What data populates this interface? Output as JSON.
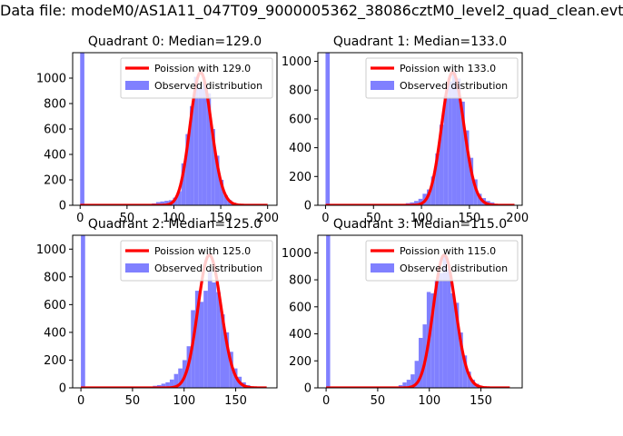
{
  "figure": {
    "title": "Data file: modeM0/AS1A11_047T09_9000005362_38086cztM0_level2_quad_clean.evt",
    "colors": {
      "bar": "#8080ff",
      "bar_edge": "#6666ee",
      "line": "#ff0000"
    }
  },
  "chart_data": [
    {
      "type": "bar",
      "title": "Quadrant 0: Median=129.0",
      "median": 129.0,
      "xlim": [
        -8,
        210
      ],
      "ylim": [
        0,
        1200
      ],
      "xticks": [
        0,
        50,
        100,
        150,
        200
      ],
      "yticks": [
        0,
        200,
        400,
        600,
        800,
        1000
      ],
      "xtick_labels": [
        "0",
        "50",
        "100",
        "150",
        "200"
      ],
      "ytick_labels": [
        "0",
        "200",
        "400",
        "600",
        "800",
        "1000"
      ],
      "bin_width": 4.5,
      "bins": [
        [
          0,
          1200
        ],
        [
          4.5,
          3
        ],
        [
          9,
          3
        ],
        [
          13.5,
          3
        ],
        [
          18,
          3
        ],
        [
          22.5,
          3
        ],
        [
          27,
          3
        ],
        [
          31.5,
          3
        ],
        [
          36,
          3
        ],
        [
          40.5,
          3
        ],
        [
          45,
          3
        ],
        [
          49.5,
          3
        ],
        [
          54,
          3
        ],
        [
          58.5,
          3
        ],
        [
          63,
          3
        ],
        [
          67.5,
          5
        ],
        [
          72,
          8
        ],
        [
          76.5,
          15
        ],
        [
          81,
          25
        ],
        [
          85.5,
          30
        ],
        [
          90,
          35
        ],
        [
          94.5,
          40
        ],
        [
          99,
          60
        ],
        [
          103.5,
          110
        ],
        [
          108,
          330
        ],
        [
          112.5,
          560
        ],
        [
          117,
          780
        ],
        [
          121.5,
          1010
        ],
        [
          126,
          920
        ],
        [
          130.5,
          960
        ],
        [
          135,
          880
        ],
        [
          139.5,
          600
        ],
        [
          144,
          390
        ],
        [
          148.5,
          200
        ],
        [
          153,
          80
        ],
        [
          157.5,
          40
        ],
        [
          162,
          20
        ],
        [
          166.5,
          10
        ],
        [
          171,
          5
        ],
        [
          175.5,
          3
        ],
        [
          180,
          3
        ],
        [
          184.5,
          3
        ],
        [
          189,
          3
        ],
        [
          193.5,
          3
        ],
        [
          198,
          3
        ]
      ],
      "poisson_range": [
        0,
        200
      ],
      "legend": {
        "line": "Poission with 129.0",
        "bar": "Observed distribution"
      }
    },
    {
      "type": "bar",
      "title": "Quadrant 1: Median=133.0",
      "median": 133.0,
      "xlim": [
        -8,
        205
      ],
      "ylim": [
        0,
        1060
      ],
      "xticks": [
        0,
        50,
        100,
        150,
        200
      ],
      "yticks": [
        0,
        200,
        400,
        600,
        800,
        1000
      ],
      "xtick_labels": [
        "0",
        "50",
        "100",
        "150",
        "200"
      ],
      "ytick_labels": [
        "0",
        "200",
        "400",
        "600",
        "800",
        "1000"
      ],
      "bin_width": 4.4,
      "bins": [
        [
          0,
          1060
        ],
        [
          4.4,
          3
        ],
        [
          8.8,
          3
        ],
        [
          13.2,
          3
        ],
        [
          17.6,
          3
        ],
        [
          22,
          3
        ],
        [
          26.4,
          3
        ],
        [
          30.8,
          3
        ],
        [
          35.2,
          3
        ],
        [
          39.6,
          3
        ],
        [
          44,
          3
        ],
        [
          48.4,
          3
        ],
        [
          52.8,
          3
        ],
        [
          57.2,
          3
        ],
        [
          61.6,
          3
        ],
        [
          66,
          3
        ],
        [
          70.4,
          5
        ],
        [
          74.8,
          6
        ],
        [
          79.2,
          8
        ],
        [
          83.6,
          15
        ],
        [
          88,
          20
        ],
        [
          92.4,
          30
        ],
        [
          96.8,
          45
        ],
        [
          101.2,
          80
        ],
        [
          105.6,
          110
        ],
        [
          110,
          200
        ],
        [
          114.4,
          360
        ],
        [
          118.8,
          560
        ],
        [
          123.2,
          760
        ],
        [
          127.6,
          860
        ],
        [
          132,
          930
        ],
        [
          136.4,
          880
        ],
        [
          140.8,
          720
        ],
        [
          145.2,
          520
        ],
        [
          149.6,
          330
        ],
        [
          154,
          180
        ],
        [
          158.4,
          80
        ],
        [
          162.8,
          50
        ],
        [
          167.2,
          30
        ],
        [
          171.6,
          20
        ],
        [
          176,
          8
        ],
        [
          180.4,
          5
        ],
        [
          184.8,
          3
        ],
        [
          189.2,
          3
        ],
        [
          193.6,
          3
        ]
      ],
      "poisson_range": [
        0,
        197
      ],
      "legend": {
        "line": "Poission with 133.0",
        "bar": "Observed distribution"
      }
    },
    {
      "type": "bar",
      "title": "Quadrant 2: Median=125.0",
      "median": 125.0,
      "xlim": [
        -8,
        190
      ],
      "ylim": [
        0,
        1100
      ],
      "xticks": [
        0,
        50,
        100,
        150
      ],
      "yticks": [
        0,
        200,
        400,
        600,
        800,
        1000
      ],
      "xtick_labels": [
        "0",
        "50",
        "100",
        "150"
      ],
      "ytick_labels": [
        "0",
        "200",
        "400",
        "600",
        "800",
        "1000"
      ],
      "bin_width": 4.1,
      "bins": [
        [
          0,
          1100
        ],
        [
          4.1,
          3
        ],
        [
          8.2,
          3
        ],
        [
          12.3,
          3
        ],
        [
          16.4,
          3
        ],
        [
          20.5,
          3
        ],
        [
          24.6,
          3
        ],
        [
          28.7,
          3
        ],
        [
          32.8,
          3
        ],
        [
          36.9,
          3
        ],
        [
          41,
          3
        ],
        [
          45.1,
          3
        ],
        [
          49.2,
          3
        ],
        [
          53.3,
          3
        ],
        [
          57.4,
          3
        ],
        [
          61.5,
          5
        ],
        [
          65.6,
          8
        ],
        [
          69.7,
          15
        ],
        [
          73.8,
          20
        ],
        [
          77.9,
          30
        ],
        [
          82,
          40
        ],
        [
          86.1,
          60
        ],
        [
          90.2,
          100
        ],
        [
          94.3,
          140
        ],
        [
          98.4,
          200
        ],
        [
          102.5,
          300
        ],
        [
          106.6,
          560
        ],
        [
          110.7,
          700
        ],
        [
          114.8,
          620
        ],
        [
          118.9,
          700
        ],
        [
          123,
          840
        ],
        [
          127.1,
          760
        ],
        [
          131.2,
          690
        ],
        [
          135.3,
          530
        ],
        [
          139.4,
          400
        ],
        [
          143.5,
          260
        ],
        [
          147.6,
          140
        ],
        [
          151.7,
          80
        ],
        [
          155.8,
          40
        ],
        [
          159.9,
          20
        ],
        [
          164,
          10
        ],
        [
          168.1,
          5
        ],
        [
          172.2,
          3
        ],
        [
          176.3,
          3
        ]
      ],
      "poisson_range": [
        0,
        180
      ],
      "legend": {
        "line": "Poission with 125.0",
        "bar": "Observed distribution"
      }
    },
    {
      "type": "bar",
      "title": "Quadrant 3: Median=115.0",
      "median": 115.0,
      "xlim": [
        -8,
        190
      ],
      "ylim": [
        0,
        1130
      ],
      "xticks": [
        0,
        50,
        100,
        150
      ],
      "yticks": [
        0,
        200,
        400,
        600,
        800,
        1000
      ],
      "xtick_labels": [
        "0",
        "50",
        "100",
        "150"
      ],
      "ytick_labels": [
        "0",
        "200",
        "400",
        "600",
        "800",
        "1000"
      ],
      "bin_width": 3.9,
      "bins": [
        [
          0,
          1130
        ],
        [
          3.9,
          3
        ],
        [
          7.8,
          3
        ],
        [
          11.7,
          3
        ],
        [
          15.6,
          3
        ],
        [
          19.5,
          3
        ],
        [
          23.4,
          3
        ],
        [
          27.3,
          3
        ],
        [
          31.2,
          3
        ],
        [
          35.1,
          3
        ],
        [
          39,
          3
        ],
        [
          42.9,
          3
        ],
        [
          46.8,
          3
        ],
        [
          50.7,
          3
        ],
        [
          54.6,
          3
        ],
        [
          58.5,
          5
        ],
        [
          62.4,
          8
        ],
        [
          66.3,
          10
        ],
        [
          70.2,
          20
        ],
        [
          74.1,
          40
        ],
        [
          78,
          60
        ],
        [
          81.9,
          100
        ],
        [
          85.8,
          200
        ],
        [
          89.7,
          370
        ],
        [
          93.6,
          470
        ],
        [
          97.5,
          710
        ],
        [
          101.4,
          700
        ],
        [
          105.3,
          800
        ],
        [
          109.2,
          850
        ],
        [
          113.1,
          990
        ],
        [
          117,
          880
        ],
        [
          120.9,
          700
        ],
        [
          124.8,
          630
        ],
        [
          128.7,
          410
        ],
        [
          132.6,
          240
        ],
        [
          136.5,
          120
        ],
        [
          140.4,
          60
        ],
        [
          144.3,
          30
        ],
        [
          148.2,
          10
        ],
        [
          152.1,
          5
        ],
        [
          156,
          3
        ],
        [
          159.9,
          3
        ],
        [
          163.8,
          3
        ],
        [
          167.7,
          3
        ],
        [
          171.6,
          3
        ]
      ],
      "poisson_range": [
        0,
        178
      ],
      "legend": {
        "line": "Poission with 115.0",
        "bar": "Observed distribution"
      }
    }
  ]
}
